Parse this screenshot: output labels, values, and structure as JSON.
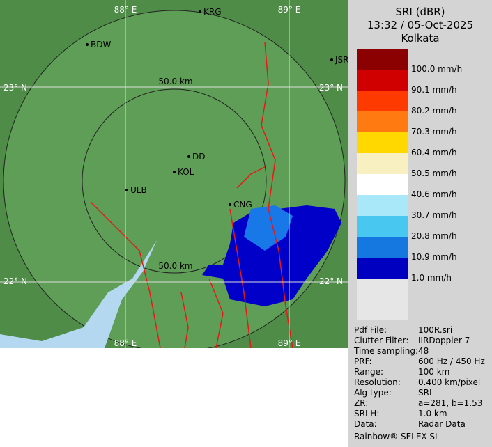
{
  "header": {
    "title": "SRI (dBR)",
    "time": "13:32 / 05-Oct-2025",
    "site": "Kolkata"
  },
  "legend": [
    {
      "label": "100.0 mm/h",
      "color": "#d00000"
    },
    {
      "label": "90.1 mm/h",
      "color": "#ff3a00"
    },
    {
      "label": "80.2 mm/h",
      "color": "#ff7a10"
    },
    {
      "label": "70.3 mm/h",
      "color": "#ffd800"
    },
    {
      "label": "60.4 mm/h",
      "color": "#f8f0c0"
    },
    {
      "label": "50.5 mm/h",
      "color": "#ffffff"
    },
    {
      "label": "40.6 mm/h",
      "color": "#a8e8f8"
    },
    {
      "label": "30.7 mm/h",
      "color": "#48c8f0"
    },
    {
      "label": "20.8 mm/h",
      "color": "#1478e0"
    },
    {
      "label": "10.9 mm/h",
      "color": "#0000c0"
    },
    {
      "label": "1.0 mm/h",
      "color": "#e6e6e6"
    }
  ],
  "legend_top_color": "#8b0000",
  "info": [
    [
      "Pdf File:",
      "100R.sri"
    ],
    [
      "Clutter Filter:",
      "IIRDoppler 7"
    ],
    [
      "Time sampling:",
      "48"
    ],
    [
      "PRF:",
      "600 Hz / 450 Hz"
    ],
    [
      "Range:",
      "100 km"
    ],
    [
      "Resolution:",
      "0.400 km/pixel"
    ],
    [
      "Alg type:",
      "SRI"
    ],
    [
      "ZR:",
      "a=281, b=1.53"
    ],
    [
      "SRI H:",
      "1.0 km"
    ],
    [
      "Data:",
      "Radar Data"
    ]
  ],
  "footer": "Rainbow® SELEX-SI",
  "map": {
    "grid_labels": [
      "88° E",
      "89° E",
      "23° N",
      "23° N",
      "22° N",
      "22° N",
      "88° E",
      "89° E"
    ],
    "ring_labels": [
      "50.0 km",
      "50.0 km"
    ],
    "cities": [
      "KRG",
      "BDW",
      "JSR",
      "DD",
      "KOL",
      "ULB",
      "CNG"
    ]
  }
}
